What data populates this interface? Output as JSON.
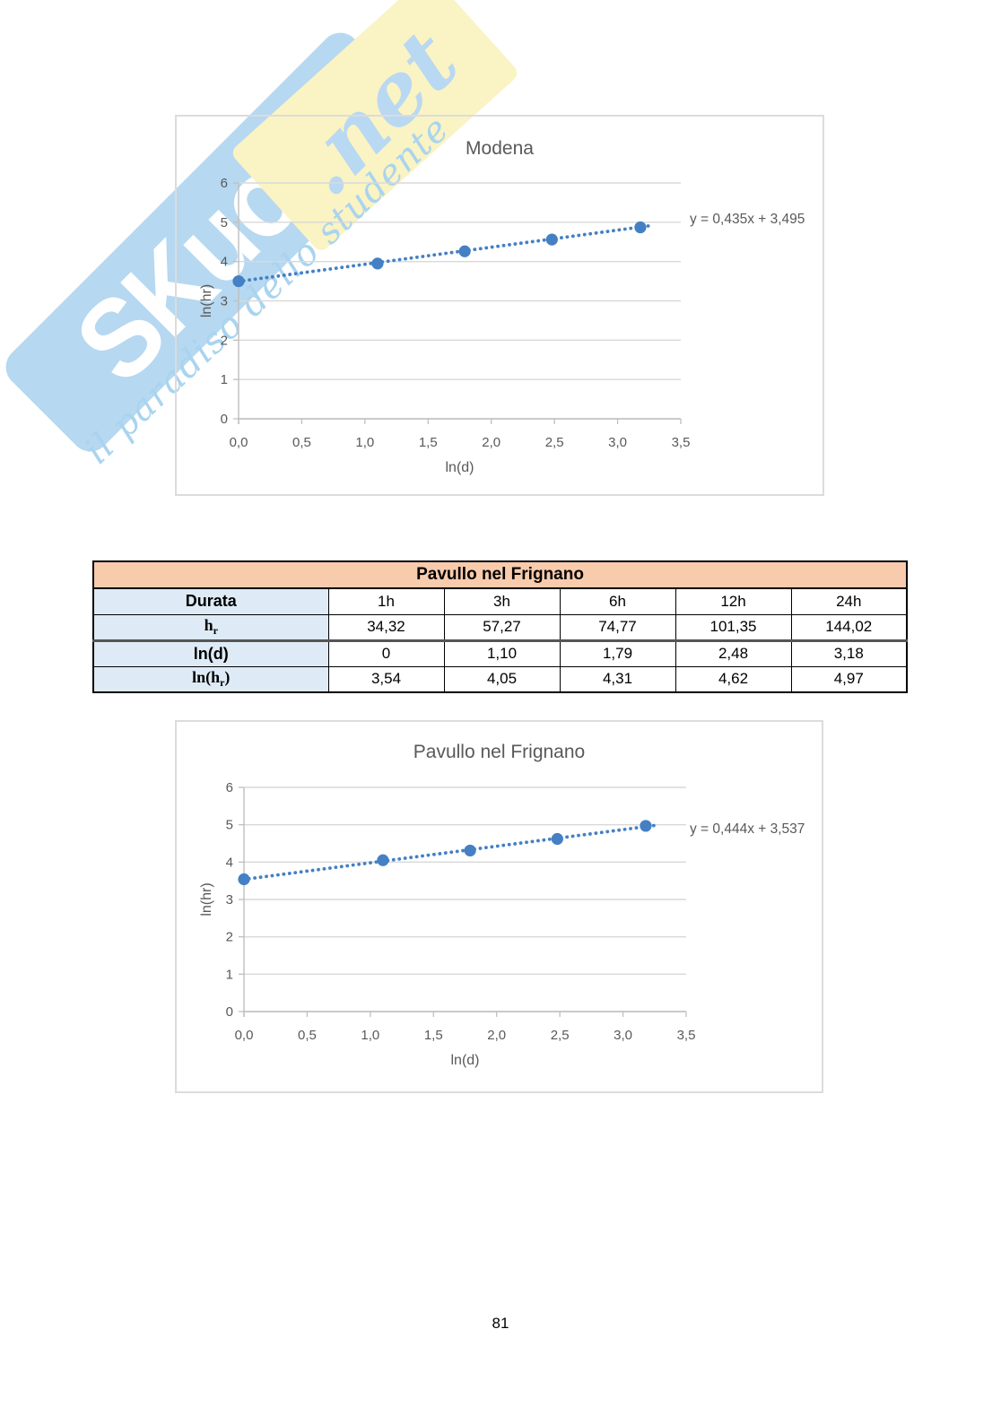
{
  "page": {
    "number": "81"
  },
  "watermark": {
    "brand": "SKuola",
    "tld": ".net",
    "tagline": "il paradiso dello studente"
  },
  "colors": {
    "accent_blue": "#4580c4",
    "axis_text_gray": "#595959",
    "gridline_gray": "#d9d9d9",
    "axis_line_gray": "#bfbfbf",
    "table_header_bg": "#f8cbad",
    "table_label_bg": "#deebf6",
    "watermark_blue": "#b6d8f1",
    "watermark_yellow": "#faf3c4",
    "chart_border_gray": "#dcdcdc"
  },
  "table": {
    "title": "Pavullo nel Frignano",
    "row_labels": [
      [
        {
          "t": "Durata"
        }
      ],
      [
        {
          "t": "h",
          "serif": true
        },
        {
          "t": "r",
          "sub": true,
          "serif": true
        }
      ],
      [
        {
          "t": "ln(d)"
        }
      ],
      [
        {
          "t": "ln(h",
          "serif": true
        },
        {
          "t": "r",
          "sub": true,
          "serif": true
        },
        {
          "t": ")",
          "serif": true
        }
      ]
    ],
    "rows_values": [
      [
        "1h",
        "3h",
        "6h",
        "12h",
        "24h"
      ],
      [
        "34,32",
        "57,27",
        "74,77",
        "101,35",
        "144,02"
      ],
      [
        "0",
        "1,10",
        "1,79",
        "2,48",
        "3,18"
      ],
      [
        "3,54",
        "4,05",
        "4,31",
        "4,62",
        "4,97"
      ]
    ],
    "thick_border_after_row": 1
  },
  "chart_data": [
    {
      "type": "scatter",
      "title": "Modena",
      "xlabel": "ln(d)",
      "ylabel": "ln(hr)",
      "x": [
        0,
        1.1,
        1.79,
        2.48,
        3.18
      ],
      "y": [
        3.5,
        3.95,
        4.26,
        4.56,
        4.87
      ],
      "trendline": {
        "equation": "y = 0,435x + 3,495",
        "slope": 0.435,
        "intercept": 3.495,
        "style": "dotted"
      },
      "xlim": [
        0,
        3.5
      ],
      "ylim": [
        0,
        6
      ],
      "x_tick_labels": [
        "0,0",
        "0,5",
        "1,0",
        "1,5",
        "2,0",
        "2,5",
        "3,0",
        "3,5"
      ],
      "y_tick_labels": [
        "0",
        "1",
        "2",
        "3",
        "4",
        "5",
        "6"
      ],
      "grid": "horizontal",
      "legend": "none"
    },
    {
      "type": "scatter",
      "title": "Pavullo nel Frignano",
      "xlabel": "ln(d)",
      "ylabel": "ln(hr)",
      "x": [
        0,
        1.1,
        1.79,
        2.48,
        3.18
      ],
      "y": [
        3.54,
        4.05,
        4.31,
        4.62,
        4.97
      ],
      "trendline": {
        "equation": "y = 0,444x + 3,537",
        "slope": 0.444,
        "intercept": 3.537,
        "style": "dotted"
      },
      "xlim": [
        0,
        3.5
      ],
      "ylim": [
        0,
        6
      ],
      "x_tick_labels": [
        "0,0",
        "0,5",
        "1,0",
        "1,5",
        "2,0",
        "2,5",
        "3,0",
        "3,5"
      ],
      "y_tick_labels": [
        "0",
        "1",
        "2",
        "3",
        "4",
        "5",
        "6"
      ],
      "grid": "horizontal",
      "legend": "none"
    }
  ]
}
